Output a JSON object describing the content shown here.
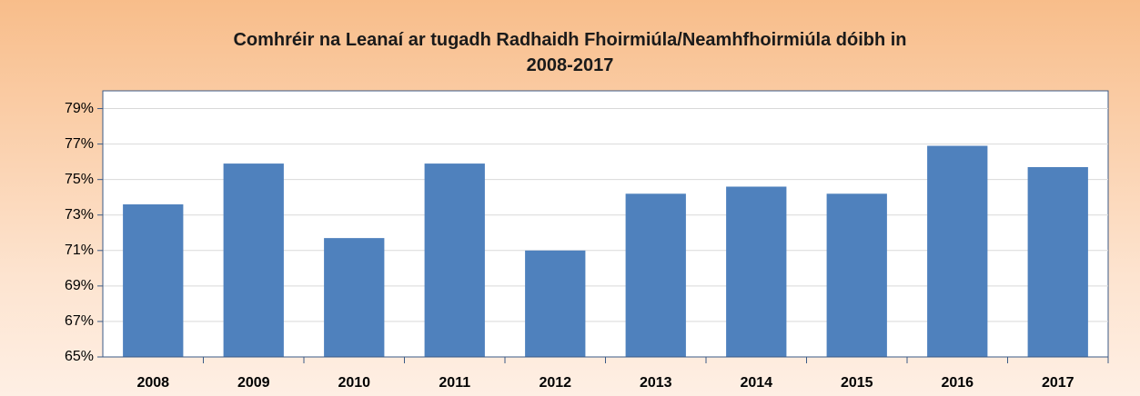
{
  "chart_data": {
    "type": "bar",
    "title": "Comhréir na Leanaí ar tugadh Radhaidh Fhoirmiúla/Neamhfhoirmiúla dóibh in 2008-2017",
    "categories": [
      "2008",
      "2009",
      "2010",
      "2011",
      "2012",
      "2013",
      "2014",
      "2015",
      "2016",
      "2017"
    ],
    "values": [
      73.6,
      75.9,
      71.7,
      75.9,
      71.0,
      74.2,
      74.6,
      74.2,
      76.9,
      75.7
    ],
    "color": "#4f81bd",
    "ylim": [
      65,
      80
    ],
    "yticks": [
      {
        "value": 65,
        "label": "65%"
      },
      {
        "value": 67,
        "label": "67%"
      },
      {
        "value": 69,
        "label": "69%"
      },
      {
        "value": 71,
        "label": "71%"
      },
      {
        "value": 73,
        "label": "73%"
      },
      {
        "value": 75,
        "label": "75%"
      },
      {
        "value": 77,
        "label": "77%"
      },
      {
        "value": 79,
        "label": "79%"
      }
    ],
    "grid": true
  }
}
